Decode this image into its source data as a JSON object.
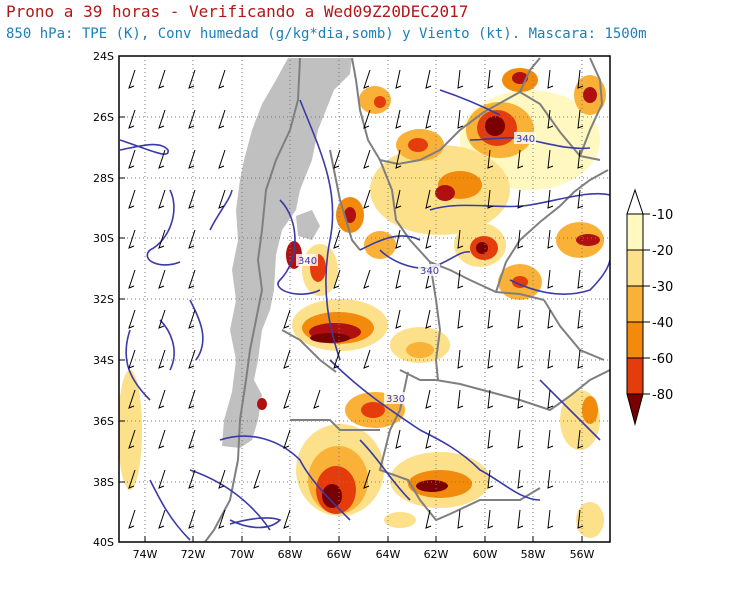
{
  "header": {
    "title": "Prono a 39 horas - Verificando a Wed09Z20DEC2017",
    "subtitle": "850 hPa: TPE (K), Conv humedad (g/kg*dia,somb) y Viento (kt). Mascara: 1500m"
  },
  "map": {
    "lat_labels": [
      "24S",
      "26S",
      "28S",
      "30S",
      "32S",
      "34S",
      "36S",
      "38S",
      "40S"
    ],
    "lon_labels": [
      "74W",
      "72W",
      "70W",
      "68W",
      "66W",
      "64W",
      "62W",
      "60W",
      "58W",
      "56W"
    ],
    "contour_labels": [
      "340",
      "340",
      "340",
      "330"
    ],
    "colors": {
      "contour": "#3a3aa8",
      "border": "#808080",
      "mask": "#c0c0c0"
    }
  },
  "colorbar": {
    "levels": [
      "-10",
      "-20",
      "-30",
      "-40",
      "-60",
      "-80"
    ],
    "colors": [
      "#fff8c0",
      "#fde08a",
      "#f9b237",
      "#f28a0c",
      "#e43c0c",
      "#b01010",
      "#7a0000"
    ]
  }
}
